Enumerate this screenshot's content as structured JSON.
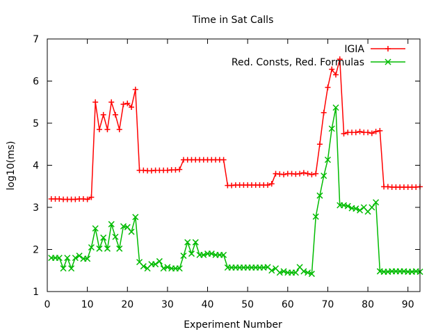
{
  "chart_data": {
    "type": "line",
    "title": "Time in Sat Calls",
    "xlabel": "Experiment Number",
    "ylabel": "log10(ms)",
    "xlim": [
      0,
      93
    ],
    "ylim": [
      1,
      7
    ],
    "xticks": [
      0,
      10,
      20,
      30,
      40,
      50,
      60,
      70,
      80,
      90
    ],
    "yticks": [
      1,
      2,
      3,
      4,
      5,
      6,
      7
    ],
    "grid": false,
    "legend_position": "top-right",
    "series": [
      {
        "name": "IGIA",
        "color": "#ff0000",
        "marker": "plus",
        "x": [
          1,
          2,
          3,
          4,
          5,
          6,
          7,
          8,
          9,
          10,
          11,
          12,
          13,
          14,
          15,
          16,
          17,
          18,
          19,
          20,
          21,
          22,
          23,
          24,
          25,
          26,
          27,
          28,
          29,
          30,
          31,
          32,
          33,
          34,
          35,
          36,
          37,
          38,
          39,
          40,
          41,
          42,
          43,
          44,
          45,
          46,
          47,
          48,
          49,
          50,
          51,
          52,
          53,
          54,
          55,
          56,
          57,
          58,
          59,
          60,
          61,
          62,
          63,
          64,
          65,
          66,
          67,
          68,
          69,
          70,
          71,
          72,
          73,
          74,
          75,
          76,
          77,
          78,
          79,
          80,
          81,
          82,
          83,
          84,
          85,
          86,
          87,
          88,
          89,
          90,
          91,
          92,
          93
        ],
        "values": [
          3.2,
          3.2,
          3.2,
          3.19,
          3.19,
          3.19,
          3.19,
          3.2,
          3.2,
          3.19,
          3.24,
          5.5,
          4.85,
          5.2,
          4.85,
          5.5,
          5.2,
          4.85,
          5.45,
          5.47,
          5.38,
          5.8,
          3.88,
          3.88,
          3.87,
          3.87,
          3.88,
          3.88,
          3.88,
          3.88,
          3.89,
          3.89,
          3.9,
          4.13,
          4.13,
          4.13,
          4.13,
          4.13,
          4.13,
          4.13,
          4.13,
          4.13,
          4.13,
          4.13,
          3.52,
          3.52,
          3.53,
          3.53,
          3.53,
          3.53,
          3.53,
          3.53,
          3.53,
          3.53,
          3.53,
          3.56,
          3.8,
          3.79,
          3.78,
          3.8,
          3.8,
          3.79,
          3.8,
          3.82,
          3.8,
          3.78,
          3.8,
          4.5,
          5.25,
          5.85,
          6.28,
          6.15,
          6.52,
          4.75,
          4.78,
          4.78,
          4.78,
          4.8,
          4.78,
          4.78,
          4.76,
          4.8,
          4.82,
          3.49,
          3.49,
          3.48,
          3.48,
          3.48,
          3.48,
          3.48,
          3.48,
          3.48,
          3.49
        ]
      },
      {
        "name": "Red. Consts, Red. Formulas",
        "color": "#00bb00",
        "marker": "cross",
        "x": [
          1,
          2,
          3,
          4,
          5,
          6,
          7,
          8,
          9,
          10,
          11,
          12,
          13,
          14,
          15,
          16,
          17,
          18,
          19,
          20,
          21,
          22,
          23,
          24,
          25,
          26,
          27,
          28,
          29,
          30,
          31,
          32,
          33,
          34,
          35,
          36,
          37,
          38,
          39,
          40,
          41,
          42,
          43,
          44,
          45,
          46,
          47,
          48,
          49,
          50,
          51,
          52,
          53,
          54,
          55,
          56,
          57,
          58,
          59,
          60,
          61,
          62,
          63,
          64,
          65,
          66,
          67,
          68,
          69,
          70,
          71,
          72,
          73,
          74,
          75,
          76,
          77,
          78,
          79,
          80,
          81,
          82,
          83,
          84,
          85,
          86,
          87,
          88,
          89,
          90,
          91,
          92,
          93
        ],
        "values": [
          1.8,
          1.8,
          1.8,
          1.55,
          1.8,
          1.55,
          1.8,
          1.85,
          1.78,
          1.78,
          2.05,
          2.5,
          2.02,
          2.28,
          2.02,
          2.6,
          2.3,
          2.02,
          2.55,
          2.53,
          2.42,
          2.77,
          1.7,
          1.6,
          1.55,
          1.65,
          1.65,
          1.72,
          1.55,
          1.58,
          1.55,
          1.55,
          1.55,
          1.85,
          2.17,
          1.9,
          2.17,
          1.87,
          1.87,
          1.9,
          1.9,
          1.87,
          1.87,
          1.87,
          1.57,
          1.57,
          1.57,
          1.57,
          1.57,
          1.57,
          1.57,
          1.57,
          1.57,
          1.57,
          1.58,
          1.5,
          1.55,
          1.45,
          1.48,
          1.45,
          1.45,
          1.45,
          1.58,
          1.48,
          1.45,
          1.42,
          2.78,
          3.28,
          3.75,
          4.13,
          4.87,
          5.37,
          3.05,
          3.05,
          3.03,
          2.98,
          2.97,
          2.93,
          3.0,
          2.9,
          3.0,
          3.12,
          1.48,
          1.47,
          1.47,
          1.48,
          1.48,
          1.48,
          1.48,
          1.47,
          1.47,
          1.48,
          1.47
        ]
      }
    ]
  }
}
